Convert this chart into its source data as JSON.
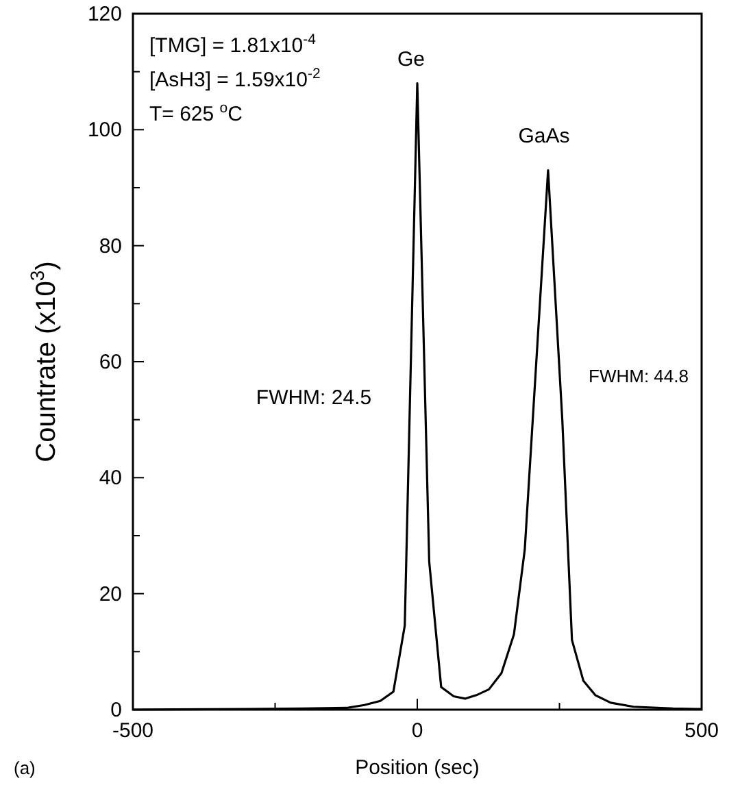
{
  "chart_data": {
    "type": "line",
    "xlabel": "Position (sec)",
    "ylabel": "Countrate (x10$^{3}$)",
    "xlim": [
      -500,
      500
    ],
    "ylim": [
      0,
      120
    ],
    "xticks": [
      -500,
      {
        "value": -250,
        "label": null
      },
      0,
      {
        "value": 250,
        "label": null
      },
      500
    ],
    "yticks": [
      0,
      {
        "value": 10,
        "label": null
      },
      20,
      {
        "value": 30,
        "label": null
      },
      40,
      {
        "value": 50,
        "label": null
      },
      60,
      {
        "value": 70,
        "label": null
      },
      80,
      {
        "value": 90,
        "label": null
      },
      100,
      {
        "value": 110,
        "label": null
      },
      120
    ],
    "grid": false,
    "marker": "none",
    "line_style": "solid",
    "series": [
      {
        "color": "#000000",
        "x": [
          -500,
          -300,
          -200,
          -124,
          -93,
          -65,
          -42,
          -22,
          0,
          21,
          42,
          64,
          84,
          104,
          126,
          148,
          170,
          189,
          230,
          255,
          272,
          292,
          313,
          340,
          380,
          450,
          500
        ],
        "values": [
          0,
          0.1,
          0.2,
          0.3,
          0.8,
          1.5,
          3.1,
          14.5,
          108,
          25.5,
          3.9,
          2.3,
          1.9,
          2.5,
          3.5,
          6.3,
          13,
          27.6,
          93,
          50,
          12,
          5,
          2.5,
          1.2,
          0.5,
          0.2,
          0.1
        ]
      }
    ],
    "annotations": [
      "Ge",
      "GaAs",
      "FWHM: 24.5",
      "FWHM: 44.8",
      "[TMG] = 1.81x10$^{-4}$",
      "[AsH3] = 1.59x10$^{-2}$",
      "T= 625 $^{o}$C",
      "(a)"
    ]
  }
}
